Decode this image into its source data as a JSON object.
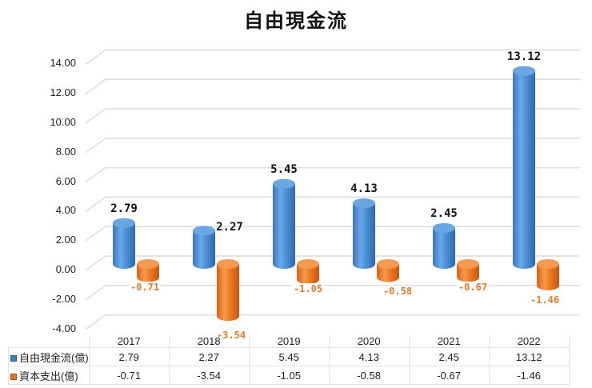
{
  "chart_data": {
    "type": "bar",
    "style": "3d-cylinder",
    "title": "自由現金流",
    "categories": [
      "2017",
      "2018",
      "2019",
      "2020",
      "2021",
      "2022"
    ],
    "series": [
      {
        "name": "自由現金流(億)",
        "color": "#4a8fd6",
        "values": [
          2.79,
          2.27,
          5.45,
          4.13,
          2.45,
          13.12
        ]
      },
      {
        "name": "資本支出(億)",
        "color": "#ee7a22",
        "values": [
          -0.71,
          -3.54,
          -1.05,
          -0.58,
          -0.67,
          -1.46
        ]
      }
    ],
    "xlabel": "",
    "ylabel": "",
    "ylim": [
      -4,
      14
    ],
    "yticks": [
      "14.00",
      "12.00",
      "10.00",
      "8.00",
      "6.00",
      "4.00",
      "2.00",
      "0.00",
      "-2.00",
      "-4.00"
    ],
    "grid": true,
    "legend_position": "data-table-bottom"
  },
  "labels": {
    "pos": [
      "2.79",
      "2.27",
      "5.45",
      "4.13",
      "2.45",
      "13.12"
    ],
    "neg": [
      "-0.71",
      "-3.54",
      "-1.05",
      "-0.58",
      "-0.67",
      "-1.46"
    ]
  },
  "table": {
    "rows": [
      {
        "name": "自由現金流(億)",
        "cells": [
          "2.79",
          "2.27",
          "5.45",
          "4.13",
          "2.45",
          "13.12"
        ]
      },
      {
        "name": "資本支出(億)",
        "cells": [
          "-0.71",
          "-3.54",
          "-1.05",
          "-0.58",
          "-0.67",
          "-1.46"
        ]
      }
    ]
  }
}
